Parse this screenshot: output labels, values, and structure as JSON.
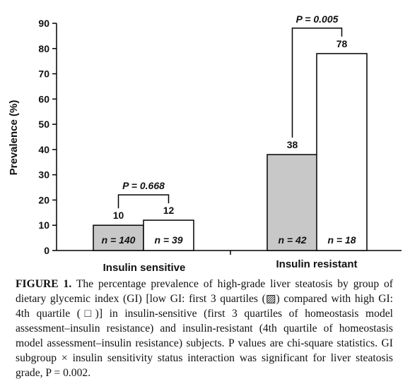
{
  "chart_data": {
    "type": "bar",
    "ylabel": "Prevalence (%)",
    "ylim": [
      0,
      90
    ],
    "yticks": [
      0,
      10,
      20,
      30,
      40,
      50,
      60,
      70,
      80,
      90
    ],
    "groups": [
      {
        "label": "Insulin sensitive",
        "p_label": "P = 0.668",
        "bars": [
          {
            "value": 10,
            "value_label": "10",
            "n_label": "n = 140",
            "fill": "#c8c8c8"
          },
          {
            "value": 12,
            "value_label": "12",
            "n_label": "n = 39",
            "fill": "#ffffff"
          }
        ]
      },
      {
        "label": "Insulin resistant",
        "p_label": "P = 0.005",
        "bars": [
          {
            "value": 38,
            "value_label": "38",
            "n_label": "n = 42",
            "fill": "#c8c8c8"
          },
          {
            "value": 78,
            "value_label": "78",
            "n_label": "n = 18",
            "fill": "#ffffff"
          }
        ]
      }
    ]
  },
  "caption": {
    "label": "FIGURE 1.",
    "text": "The percentage prevalence of high-grade liver steatosis by group of dietary glycemic index (GI) [low GI: first 3 quartiles (▨) compared with high GI: 4th quartile (□)] in insulin-sensitive (first 3 quartiles of homeostasis model assessment–insulin resistance) and insulin-resistant (4th quartile of homeostasis model assessment–insulin resistance) subjects. P values are chi-square statistics. GI subgroup × insulin sensitivity status interaction was significant for liver steatosis grade, P = 0.002."
  }
}
